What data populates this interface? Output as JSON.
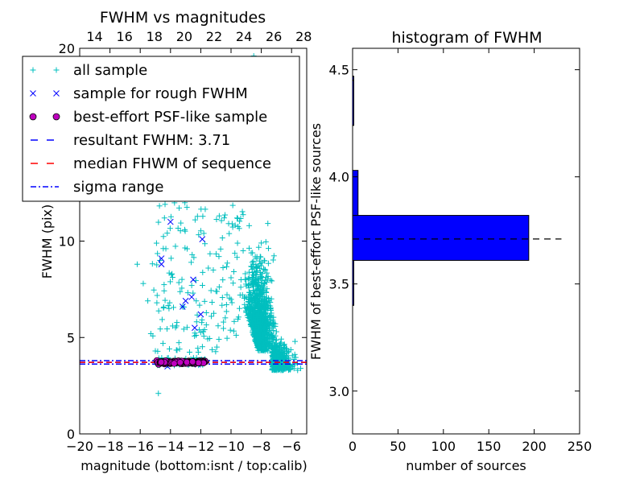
{
  "chart_data": [
    {
      "type": "scatter",
      "title": "FWHM vs magnitudes",
      "xlabel": "magnitude (bottom:isnt / top:calib)",
      "ylabel": "FWHM (pix)",
      "xlim": [
        -20,
        -5
      ],
      "ylim": [
        0,
        20
      ],
      "x_ticks": [
        "−20",
        "−18",
        "−16",
        "−14",
        "−12",
        "−10",
        "−8",
        "−6"
      ],
      "x_tick_values": [
        -20,
        -18,
        -16,
        -14,
        -12,
        -10,
        -8,
        -6
      ],
      "y_ticks": [
        "0",
        "5",
        "10"
      ],
      "y_tick_values": [
        0,
        5,
        10
      ],
      "top_ticks": [
        "14",
        "16",
        "18",
        "20",
        "22",
        "24",
        "26",
        "28"
      ],
      "top_tick_values": [
        14,
        16,
        18,
        20,
        22,
        24,
        26,
        28
      ],
      "top_xlim": [
        13,
        28.2
      ],
      "legend_position": "upper-left",
      "legend": [
        {
          "label": "all sample",
          "marker": "plus",
          "color": "#00bfbf"
        },
        {
          "label": "sample for rough FWHM",
          "marker": "x",
          "color": "#0000ff"
        },
        {
          "label": "best-effort PSF-like sample",
          "marker": "circle",
          "color": "#bf00bf"
        },
        {
          "label": "resultant FWHM: 3.71",
          "marker": "dash",
          "color": "#0000ff"
        },
        {
          "label": "median FHWM of sequence",
          "marker": "dash",
          "color": "#ff0000"
        },
        {
          "label": "sigma range",
          "marker": "dashdot",
          "color": "#0000ff"
        }
      ],
      "series": [
        {
          "name": "all sample",
          "points": [
            [
              -16.2,
              8.8
            ],
            [
              -15.8,
              7.8
            ],
            [
              -15.5,
              6.9
            ],
            [
              -15.3,
              5.2
            ],
            [
              -15.0,
              4.3
            ],
            [
              -14.9,
              6.8
            ],
            [
              -14.7,
              9.0
            ],
            [
              -14.4,
              11.2
            ],
            [
              -14.1,
              6.5
            ],
            [
              -13.9,
              8.3
            ],
            [
              -13.6,
              5.6
            ],
            [
              -13.4,
              4.4
            ],
            [
              -13.1,
              12.2
            ],
            [
              -12.9,
              9.6
            ],
            [
              -12.6,
              7.7
            ],
            [
              -12.3,
              6.9
            ],
            [
              -12.1,
              5.4
            ],
            [
              -11.8,
              10.4
            ],
            [
              -11.5,
              8.6
            ],
            [
              -11.3,
              6.1
            ],
            [
              -11.0,
              7.4
            ],
            [
              -10.8,
              9.2
            ],
            [
              -10.5,
              5.8
            ],
            [
              -10.3,
              6.7
            ],
            [
              -10.0,
              8.1
            ],
            [
              -9.8,
              13.0
            ],
            [
              -9.6,
              11.2
            ],
            [
              -9.4,
              7.2
            ],
            [
              -9.2,
              9.5
            ],
            [
              -9.0,
              6.3
            ],
            [
              -8.8,
              10.8
            ],
            [
              -8.6,
              8.9
            ],
            [
              -8.4,
              12.4
            ],
            [
              -8.2,
              7.6
            ],
            [
              -8.0,
              9.9
            ],
            [
              -7.8,
              6.8
            ],
            [
              -7.6,
              5.6
            ],
            [
              -7.4,
              6.1
            ],
            [
              -7.2,
              4.9
            ],
            [
              -7.0,
              5.3
            ],
            [
              -6.8,
              4.6
            ],
            [
              -6.6,
              4.2
            ],
            [
              -6.4,
              3.9
            ],
            [
              -6.2,
              3.8
            ],
            [
              -6.0,
              3.5
            ],
            [
              -5.8,
              3.6
            ],
            [
              -5.6,
              3.3
            ],
            [
              -5.4,
              3.4
            ],
            [
              -14.8,
              2.1
            ],
            [
              -8.5,
              19.6
            ],
            [
              -9.3,
              15.2
            ],
            [
              -10.6,
              13.6
            ],
            [
              -8.9,
              14.4
            ],
            [
              -12.4,
              14.9
            ]
          ]
        },
        {
          "name": "sample for rough FWHM",
          "points": [
            [
              -14.6,
              8.8
            ],
            [
              -14.6,
              9.1
            ],
            [
              -14.0,
              11.0
            ],
            [
              -13.2,
              6.6
            ],
            [
              -13.0,
              6.9
            ],
            [
              -12.6,
              7.1
            ],
            [
              -12.5,
              8.0
            ],
            [
              -12.4,
              5.5
            ],
            [
              -12.0,
              6.2
            ],
            [
              -11.9,
              10.1
            ],
            [
              -14.2,
              3.5
            ],
            [
              -12.2,
              3.6
            ]
          ]
        },
        {
          "name": "best-effort PSF-like sample",
          "points": [
            [
              -14.9,
              3.8
            ],
            [
              -14.6,
              3.75
            ],
            [
              -14.3,
              3.78
            ],
            [
              -14.0,
              3.72
            ],
            [
              -13.7,
              3.76
            ],
            [
              -13.4,
              3.7
            ],
            [
              -13.1,
              3.74
            ],
            [
              -12.8,
              3.78
            ],
            [
              -12.5,
              3.72
            ],
            [
              -12.2,
              3.76
            ],
            [
              -11.9,
              3.7
            ],
            [
              -11.7,
              3.74
            ]
          ]
        }
      ],
      "lines": [
        {
          "name": "resultant FWHM: 3.71",
          "y": 3.71,
          "style": "dashed",
          "color": "#0000ff"
        },
        {
          "name": "median FHWM of sequence",
          "y": 3.71,
          "style": "dashed",
          "color": "#ff0000"
        },
        {
          "name": "sigma range",
          "y": 3.62,
          "style": "dashdot",
          "color": "#0000ff"
        },
        {
          "name": "sigma range",
          "y": 3.8,
          "style": "dashdot",
          "color": "#0000ff"
        }
      ]
    },
    {
      "type": "bar",
      "orientation": "horizontal",
      "title": "histogram of FWHM",
      "xlabel": "number of sources",
      "ylabel": "FWHM of best-effort PSF-like sources",
      "xlim": [
        0,
        250
      ],
      "ylim": [
        2.8,
        4.6
      ],
      "x_ticks": [
        "0",
        "50",
        "100",
        "150",
        "200",
        "250"
      ],
      "x_tick_values": [
        0,
        50,
        100,
        150,
        200,
        250
      ],
      "y_ticks": [
        "3.0",
        "3.5",
        "4.0",
        "4.5"
      ],
      "y_tick_values": [
        3.0,
        3.5,
        4.0,
        4.5
      ],
      "bins": [
        {
          "from": 3.4,
          "to": 3.61,
          "count": 1
        },
        {
          "from": 3.61,
          "to": 3.82,
          "count": 194
        },
        {
          "from": 3.82,
          "to": 4.03,
          "count": 6
        },
        {
          "from": 4.03,
          "to": 4.24,
          "count": 0
        },
        {
          "from": 4.24,
          "to": 4.45,
          "count": 1
        },
        {
          "from": 4.45,
          "to": 4.47,
          "count": 1
        }
      ],
      "bar_color": "#0000ff",
      "reference_line": {
        "y": 3.71,
        "x_from": 0,
        "x_to": 230,
        "style": "dashed",
        "color": "#000000"
      }
    }
  ]
}
